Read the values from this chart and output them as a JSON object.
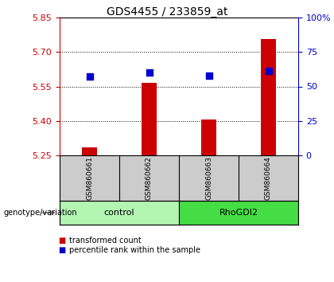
{
  "title": "GDS4455 / 233859_at",
  "samples": [
    "GSM860661",
    "GSM860662",
    "GSM860663",
    "GSM860664"
  ],
  "transformed_counts": [
    5.285,
    5.565,
    5.405,
    5.755
  ],
  "percentile_ranks": [
    57,
    60,
    58,
    61
  ],
  "ylim_left": [
    5.25,
    5.85
  ],
  "ylim_right": [
    0,
    100
  ],
  "yticks_left": [
    5.25,
    5.4,
    5.55,
    5.7,
    5.85
  ],
  "yticks_right": [
    0,
    25,
    50,
    75,
    100
  ],
  "bar_color": "#CC0000",
  "dot_color": "#0000CC",
  "bar_width": 0.25,
  "dot_size": 40,
  "left_label_color": "#CC0000",
  "right_label_color": "#0000CC",
  "plot_bg_color": "#ffffff",
  "sample_box_color": "#cccccc",
  "control_color": "#b3f5b3",
  "rho_color": "#44dd44",
  "legend_red_label": "transformed count",
  "legend_blue_label": "percentile rank within the sample",
  "genotype_label": "genotype/variation",
  "group_info": [
    [
      "control",
      0,
      2,
      "#b3f5b3"
    ],
    [
      "RhoGDI2",
      2,
      4,
      "#44dd44"
    ]
  ]
}
